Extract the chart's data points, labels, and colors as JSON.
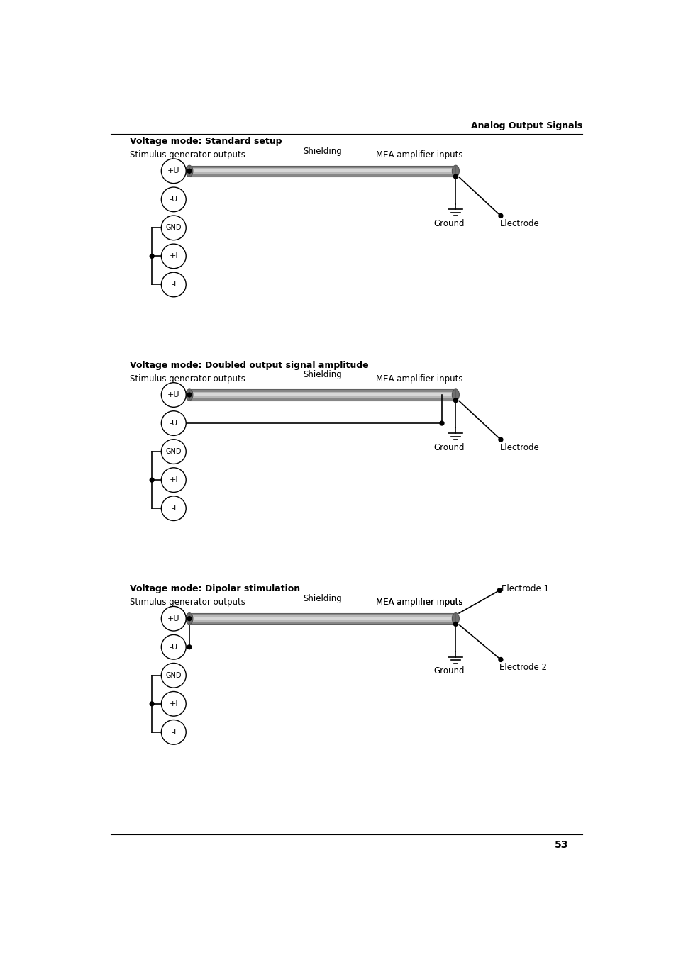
{
  "bg_color": "#ffffff",
  "page_header": "Analog Output Signals",
  "page_number": "53",
  "diagrams": [
    {
      "title": "Voltage mode: Standard setup",
      "label_left": "Stimulus generator outputs",
      "label_right": "MEA amplifier inputs",
      "shielding_label": "Shielding",
      "circles": [
        "+U",
        "-U",
        "GND",
        "+I",
        "-I"
      ],
      "connections": "standard",
      "electrode_label": "Electrode",
      "electrode2_label": null,
      "ground_label": "Ground"
    },
    {
      "title": "Voltage mode: Doubled output signal amplitude",
      "label_left": "Stimulus generator outputs",
      "label_right": "MEA amplifier inputs",
      "shielding_label": "Shielding",
      "circles": [
        "+U",
        "-U",
        "GND",
        "+I",
        "-I"
      ],
      "connections": "doubled",
      "electrode_label": "Electrode",
      "electrode2_label": null,
      "ground_label": "Ground"
    },
    {
      "title": "Voltage mode: Dipolar stimulation",
      "label_left": "Stimulus generator outputs",
      "label_right": "MEA amplifier inputs",
      "shielding_label": "Shielding",
      "circles": [
        "+U",
        "-U",
        "GND",
        "+I",
        "-I"
      ],
      "connections": "dipolar",
      "electrode_label": "Electrode 1",
      "electrode2_label": "Electrode 2",
      "ground_label": "Ground"
    }
  ],
  "title_fontsize": 9,
  "label_fontsize": 8.5,
  "circle_fontsize": 8,
  "header_fontsize": 9,
  "pagenum_fontsize": 10
}
